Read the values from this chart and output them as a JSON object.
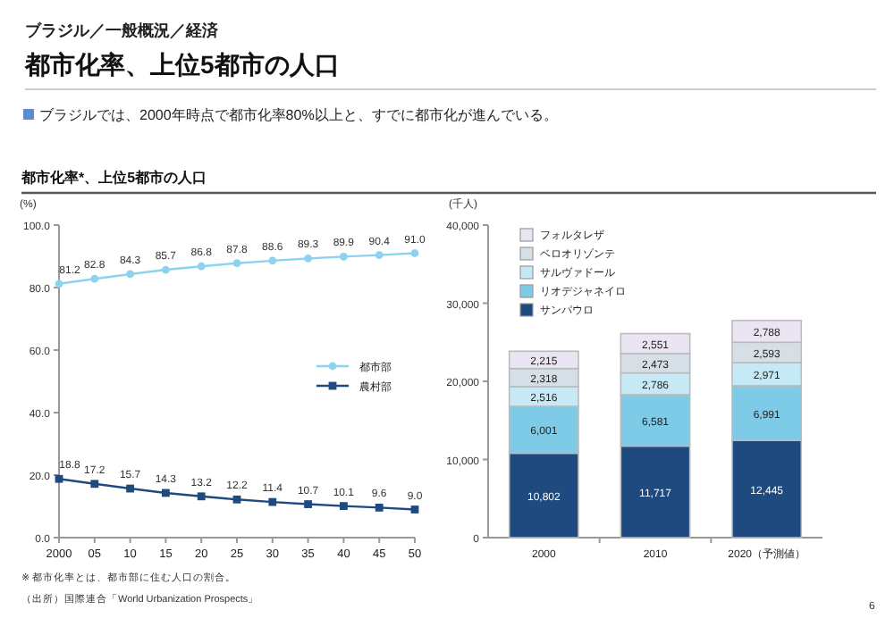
{
  "chart_data": [
    {
      "type": "line",
      "title": "都市化率、上位5都市の人口",
      "subtitle": "ブラジル／一般概況／経済",
      "ylabel": "(%)",
      "annotations": [
        "ブラジルでは、2000年時点で都市化率80%以上と、すでに都市化が進んでいる。",
        "都市化率*、上位5都市の人口",
        "※ 都市化率とは、都市部に住む人口の割合。",
        "（出所）国際連合「World Urbanization Prospects」",
        "6"
      ],
      "x": [
        2000,
        2005,
        2010,
        2015,
        2020,
        2025,
        2030,
        2035,
        2040,
        2045,
        2050
      ],
      "xlim": [
        2000,
        2050
      ],
      "xticks": [
        2000,
        {
          "value": 2005,
          "label": "05"
        },
        {
          "value": 2010,
          "label": "10"
        },
        {
          "value": 2015,
          "label": "15"
        },
        {
          "value": 2020,
          "label": "20"
        },
        {
          "value": 2025,
          "label": "25"
        },
        {
          "value": 2030,
          "label": "30"
        },
        {
          "value": 2035,
          "label": "35"
        },
        {
          "value": 2040,
          "label": "40"
        },
        {
          "value": 2045,
          "label": "45"
        },
        {
          "value": 2050,
          "label": "50"
        }
      ],
      "ylim": [
        0,
        100
      ],
      "yticks": [
        {
          "value": 0,
          "label": "0.0"
        },
        {
          "value": 20,
          "label": "20.0"
        },
        {
          "value": 40,
          "label": "40.0"
        },
        {
          "value": 60,
          "label": "60.0"
        },
        {
          "value": 80,
          "label": "80.0"
        },
        {
          "value": 100,
          "label": "100.0"
        }
      ],
      "series": [
        {
          "name": "都市部",
          "color": "#8dd3ee",
          "marker": "circle",
          "values": [
            81.2,
            82.8,
            84.3,
            85.7,
            86.8,
            87.8,
            88.6,
            89.3,
            89.9,
            90.4,
            91.0
          ],
          "value_labels": [
            "81.2",
            "82.8",
            "84.3",
            "85.7",
            "86.8",
            "87.8",
            "88.6",
            "89.3",
            "89.9",
            "90.4",
            "91.0"
          ]
        },
        {
          "name": "農村部",
          "color": "#1f4a80",
          "marker": "square",
          "values": [
            18.8,
            17.2,
            15.7,
            14.3,
            13.2,
            12.2,
            11.4,
            10.7,
            10.1,
            9.6,
            9.0
          ],
          "value_labels": [
            "18.8",
            "17.2",
            "15.7",
            "14.3",
            "13.2",
            "12.2",
            "11.4",
            "10.7",
            "10.1",
            "9.6",
            "9.0"
          ]
        }
      ],
      "legend": "right",
      "grid": false
    },
    {
      "type": "bar",
      "stacked": true,
      "ylabel": "(千人)",
      "categories": [
        "2000",
        "2010",
        "2020（予測値）"
      ],
      "ylim": [
        0,
        40000
      ],
      "yticks": [
        0,
        {
          "value": 10000,
          "label": "10,000"
        },
        {
          "value": 20000,
          "label": "20,000"
        },
        {
          "value": 30000,
          "label": "30,000"
        },
        {
          "value": 40000,
          "label": "40,000"
        }
      ],
      "series": [
        {
          "name": "サンパウロ",
          "color": "#1f4a80",
          "values": [
            10802,
            11717,
            12445
          ],
          "value_labels": [
            "10,802",
            "11,717",
            "12,445"
          ]
        },
        {
          "name": "リオデジャネイロ",
          "color": "#7ecbe8",
          "values": [
            6001,
            6581,
            6991
          ],
          "value_labels": [
            "6,001",
            "6,581",
            "6,991"
          ]
        },
        {
          "name": "サルヴァドール",
          "color": "#c6e9f6",
          "values": [
            2516,
            2786,
            2971
          ],
          "value_labels": [
            "2,516",
            "2,786",
            "2,971"
          ]
        },
        {
          "name": "ベロオリゾンテ",
          "color": "#d6dfe5",
          "values": [
            2318,
            2473,
            2593
          ],
          "value_labels": [
            "2,318",
            "2,473",
            "2,593"
          ]
        },
        {
          "name": "フォルタレザ",
          "color": "#ebe5f3",
          "values": [
            2215,
            2551,
            2788
          ],
          "value_labels": [
            "2,215",
            "2,551",
            "2,788"
          ]
        }
      ],
      "legend": "top left",
      "grid": false
    }
  ]
}
